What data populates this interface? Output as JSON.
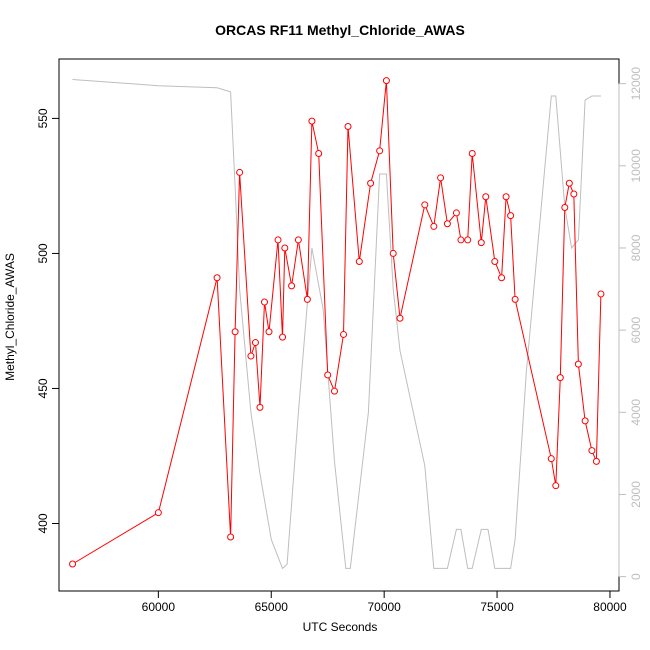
{
  "chart_data": {
    "type": "line",
    "title": "ORCAS RF11 Methyl_Chloride_AWAS",
    "xlabel": "UTC Seconds",
    "ylabel": "Methyl_Chloride_AWAS",
    "xlim": [
      55600,
      80400
    ],
    "ylim": [
      375,
      572
    ],
    "y2lim": [
      -350,
      12600
    ],
    "x_ticks": [
      60000,
      65000,
      70000,
      75000,
      80000
    ],
    "y_ticks": [
      400,
      450,
      500,
      550
    ],
    "y2_ticks": [
      0,
      2000,
      4000,
      6000,
      8000,
      10000,
      12000
    ],
    "colors": {
      "primary": "#ff0000",
      "secondary": "#bebebe"
    },
    "series": [
      {
        "values": [
          [
            56200,
            385
          ],
          [
            60000,
            404
          ],
          [
            62600,
            491
          ],
          [
            63200,
            395
          ],
          [
            63400,
            471
          ],
          [
            63600,
            530
          ],
          [
            64100,
            462
          ],
          [
            64300,
            467
          ],
          [
            64500,
            443
          ],
          [
            64700,
            482
          ],
          [
            64900,
            471
          ],
          [
            65300,
            505
          ],
          [
            65500,
            469
          ],
          [
            65600,
            502
          ],
          [
            65900,
            488
          ],
          [
            66200,
            505
          ],
          [
            66600,
            483
          ],
          [
            66800,
            549
          ],
          [
            67100,
            537
          ],
          [
            67500,
            455
          ],
          [
            67800,
            449
          ],
          [
            68200,
            470
          ],
          [
            68400,
            547
          ],
          [
            68900,
            497
          ],
          [
            69400,
            526
          ],
          [
            69800,
            538
          ],
          [
            70100,
            564
          ],
          [
            70400,
            500
          ],
          [
            70700,
            476
          ],
          [
            71800,
            518
          ],
          [
            72200,
            510
          ],
          [
            72500,
            528
          ],
          [
            72800,
            511
          ],
          [
            73200,
            515
          ],
          [
            73400,
            505
          ],
          [
            73700,
            505
          ],
          [
            73900,
            537
          ],
          [
            74300,
            504
          ],
          [
            74500,
            521
          ],
          [
            74900,
            497
          ],
          [
            75200,
            491
          ],
          [
            75400,
            521
          ],
          [
            75600,
            514
          ],
          [
            75800,
            483
          ],
          [
            77400,
            424
          ],
          [
            77600,
            414
          ],
          [
            77800,
            454
          ],
          [
            78000,
            517
          ],
          [
            78200,
            526
          ],
          [
            78400,
            522
          ],
          [
            78600,
            459
          ],
          [
            78900,
            438
          ],
          [
            79200,
            427
          ],
          [
            79400,
            423
          ],
          [
            79600,
            485
          ]
        ]
      },
      {
        "values": [
          [
            56200,
            12100
          ],
          [
            60000,
            11950
          ],
          [
            62600,
            11900
          ],
          [
            63200,
            11800
          ],
          [
            63400,
            9500
          ],
          [
            63600,
            7000
          ],
          [
            64100,
            4000
          ],
          [
            64500,
            2500
          ],
          [
            65000,
            900
          ],
          [
            65500,
            200
          ],
          [
            65700,
            300
          ],
          [
            66200,
            4000
          ],
          [
            66800,
            8000
          ],
          [
            67300,
            6500
          ],
          [
            67800,
            2800
          ],
          [
            68300,
            200
          ],
          [
            68500,
            200
          ],
          [
            69300,
            4000
          ],
          [
            69800,
            9800
          ],
          [
            70100,
            9800
          ],
          [
            70400,
            7000
          ],
          [
            70700,
            5500
          ],
          [
            71800,
            2700
          ],
          [
            72200,
            200
          ],
          [
            72500,
            200
          ],
          [
            72800,
            200
          ],
          [
            73200,
            1150
          ],
          [
            73400,
            1150
          ],
          [
            73700,
            200
          ],
          [
            73900,
            200
          ],
          [
            74300,
            1150
          ],
          [
            74600,
            1150
          ],
          [
            74900,
            200
          ],
          [
            75200,
            200
          ],
          [
            75600,
            200
          ],
          [
            75800,
            900
          ],
          [
            76300,
            5000
          ],
          [
            77400,
            11700
          ],
          [
            77600,
            11700
          ],
          [
            78000,
            9000
          ],
          [
            78300,
            8000
          ],
          [
            78600,
            8200
          ],
          [
            78900,
            11600
          ],
          [
            79200,
            11700
          ],
          [
            79600,
            11700
          ]
        ]
      }
    ]
  }
}
